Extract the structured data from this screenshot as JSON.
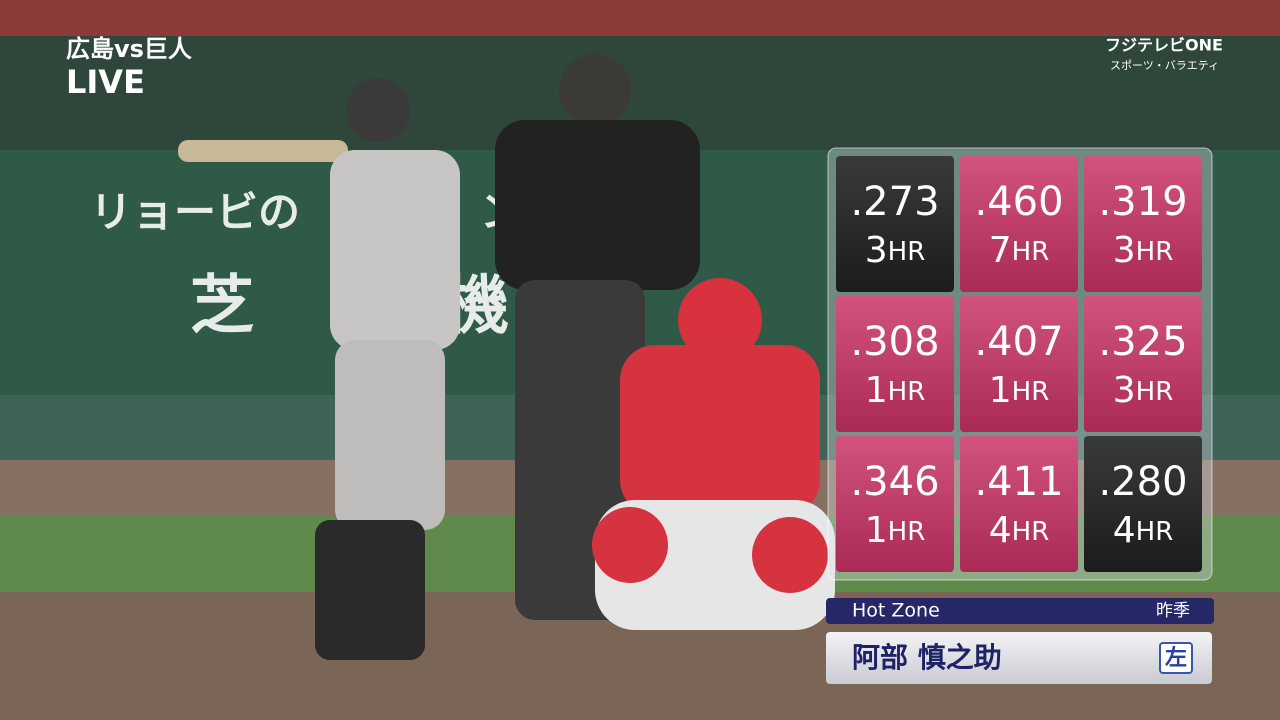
{
  "broadcast": {
    "match": "広島vs巨人",
    "status": "LIVE",
    "channel": "フジテレビONE",
    "channel_sub": "スポーツ・バラエティ"
  },
  "scene": {
    "banner_left": "リョービの",
    "banner_right": "ン",
    "banner_big": "芝",
    "banner_big_right": "機"
  },
  "hot_zone": {
    "cells": [
      {
        "avg": ".273",
        "hr": "3",
        "unit": "HR",
        "hot": false
      },
      {
        "avg": ".460",
        "hr": "7",
        "unit": "HR",
        "hot": true
      },
      {
        "avg": ".319",
        "hr": "3",
        "unit": "HR",
        "hot": true
      },
      {
        "avg": ".308",
        "hr": "1",
        "unit": "HR",
        "hot": true
      },
      {
        "avg": ".407",
        "hr": "1",
        "unit": "HR",
        "hot": true
      },
      {
        "avg": ".325",
        "hr": "3",
        "unit": "HR",
        "hot": true
      },
      {
        "avg": ".346",
        "hr": "1",
        "unit": "HR",
        "hot": true
      },
      {
        "avg": ".411",
        "hr": "4",
        "unit": "HR",
        "hot": true
      },
      {
        "avg": ".280",
        "hr": "4",
        "unit": "HR",
        "hot": false
      }
    ],
    "title": "Hot Zone",
    "period": "昨季",
    "player": "阿部 慎之助",
    "bats": "左"
  }
}
